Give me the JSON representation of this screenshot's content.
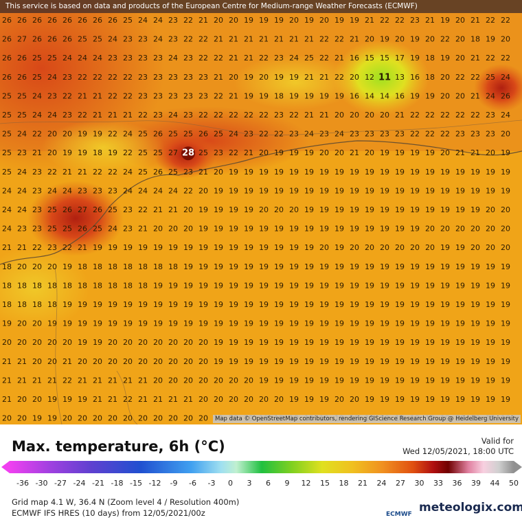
{
  "map": {
    "banner": "This service is based on data and products of the European Centre for Medium-range Weather Forecasts (ECMWF)",
    "attribution": "Map data © OpenStreetMap contributors, rendering GIScience Research Group @ Heidelberg University",
    "grid": [
      [
        26,
        26,
        26,
        26,
        26,
        26,
        26,
        26,
        25,
        24,
        24,
        23,
        22,
        21,
        20,
        20,
        19,
        19,
        19,
        20,
        19,
        20,
        19,
        19,
        21,
        22,
        22,
        23,
        21,
        19,
        20,
        21,
        22,
        22
      ],
      [
        26,
        27,
        26,
        26,
        26,
        25,
        25,
        24,
        23,
        23,
        24,
        23,
        22,
        22,
        21,
        21,
        21,
        21,
        21,
        21,
        21,
        22,
        22,
        21,
        20,
        19,
        20,
        19,
        20,
        22,
        20,
        18,
        19,
        20
      ],
      [
        26,
        26,
        25,
        25,
        24,
        24,
        24,
        23,
        23,
        23,
        23,
        24,
        23,
        22,
        22,
        21,
        21,
        22,
        23,
        24,
        25,
        22,
        21,
        16,
        15,
        15,
        17,
        19,
        18,
        19,
        20,
        21,
        22,
        22
      ],
      [
        26,
        26,
        25,
        24,
        23,
        22,
        22,
        22,
        22,
        23,
        23,
        23,
        23,
        23,
        21,
        20,
        19,
        20,
        19,
        19,
        21,
        21,
        22,
        20,
        12,
        11,
        13,
        16,
        18,
        20,
        22,
        22,
        25,
        24
      ],
      [
        25,
        25,
        24,
        23,
        22,
        21,
        21,
        22,
        22,
        23,
        23,
        23,
        23,
        23,
        22,
        21,
        19,
        19,
        18,
        19,
        19,
        19,
        19,
        16,
        14,
        14,
        16,
        19,
        19,
        20,
        20,
        21,
        24,
        26
      ],
      [
        25,
        25,
        24,
        24,
        23,
        22,
        21,
        21,
        21,
        22,
        23,
        24,
        23,
        22,
        22,
        22,
        22,
        22,
        23,
        22,
        21,
        21,
        20,
        20,
        20,
        20,
        21,
        22,
        22,
        22,
        22,
        22,
        23,
        24
      ],
      [
        25,
        24,
        22,
        20,
        20,
        19,
        19,
        22,
        24,
        25,
        26,
        25,
        25,
        26,
        25,
        24,
        23,
        22,
        22,
        23,
        24,
        23,
        24,
        23,
        23,
        23,
        23,
        22,
        22,
        22,
        23,
        23,
        23,
        20
      ],
      [
        25,
        23,
        21,
        20,
        19,
        19,
        18,
        19,
        22,
        25,
        25,
        27,
        28,
        25,
        23,
        22,
        21,
        20,
        19,
        19,
        19,
        20,
        20,
        21,
        20,
        19,
        19,
        19,
        19,
        20,
        21,
        21,
        20,
        19
      ],
      [
        25,
        24,
        23,
        22,
        21,
        21,
        22,
        22,
        24,
        25,
        26,
        25,
        23,
        21,
        20,
        19,
        19,
        19,
        19,
        19,
        19,
        19,
        19,
        19,
        19,
        19,
        19,
        19,
        19,
        19,
        19,
        19,
        19,
        19
      ],
      [
        24,
        24,
        23,
        24,
        24,
        23,
        23,
        23,
        24,
        24,
        24,
        24,
        22,
        20,
        19,
        19,
        19,
        19,
        19,
        19,
        19,
        19,
        19,
        19,
        19,
        19,
        19,
        19,
        19,
        19,
        19,
        19,
        19,
        19
      ],
      [
        24,
        24,
        23,
        25,
        26,
        27,
        26,
        25,
        23,
        22,
        21,
        21,
        20,
        19,
        19,
        19,
        19,
        20,
        20,
        20,
        19,
        19,
        19,
        19,
        19,
        19,
        19,
        19,
        19,
        19,
        19,
        19,
        20,
        20
      ],
      [
        24,
        23,
        23,
        25,
        25,
        26,
        25,
        24,
        23,
        21,
        20,
        20,
        20,
        19,
        19,
        19,
        19,
        19,
        19,
        19,
        19,
        19,
        19,
        19,
        19,
        19,
        19,
        19,
        20,
        20,
        20,
        20,
        20,
        20
      ],
      [
        21,
        21,
        22,
        23,
        22,
        21,
        19,
        19,
        19,
        19,
        19,
        19,
        19,
        19,
        19,
        19,
        19,
        19,
        19,
        19,
        19,
        20,
        19,
        20,
        20,
        20,
        20,
        20,
        20,
        19,
        19,
        20,
        20,
        20
      ],
      [
        18,
        20,
        20,
        20,
        19,
        18,
        18,
        18,
        18,
        18,
        18,
        18,
        19,
        19,
        19,
        19,
        19,
        19,
        19,
        19,
        19,
        19,
        19,
        19,
        19,
        19,
        19,
        19,
        19,
        19,
        19,
        19,
        19,
        19
      ],
      [
        18,
        18,
        18,
        18,
        18,
        18,
        18,
        18,
        18,
        18,
        19,
        19,
        19,
        19,
        19,
        19,
        19,
        19,
        19,
        19,
        19,
        19,
        19,
        19,
        19,
        19,
        19,
        19,
        19,
        19,
        19,
        19,
        19,
        19
      ],
      [
        18,
        18,
        18,
        18,
        19,
        19,
        19,
        19,
        19,
        19,
        19,
        19,
        19,
        19,
        19,
        19,
        19,
        19,
        19,
        19,
        19,
        19,
        19,
        19,
        19,
        19,
        19,
        19,
        19,
        19,
        19,
        19,
        19,
        19
      ],
      [
        19,
        20,
        20,
        19,
        19,
        19,
        19,
        19,
        19,
        19,
        19,
        19,
        19,
        19,
        19,
        19,
        19,
        19,
        19,
        19,
        19,
        19,
        19,
        19,
        19,
        19,
        19,
        19,
        19,
        19,
        19,
        19,
        19,
        19
      ],
      [
        20,
        20,
        20,
        20,
        20,
        19,
        19,
        20,
        20,
        20,
        20,
        20,
        20,
        20,
        19,
        19,
        19,
        19,
        19,
        19,
        19,
        19,
        19,
        19,
        19,
        19,
        19,
        19,
        19,
        19,
        19,
        19,
        19,
        19
      ],
      [
        21,
        21,
        20,
        20,
        21,
        20,
        20,
        20,
        20,
        20,
        20,
        20,
        20,
        20,
        19,
        19,
        19,
        19,
        19,
        19,
        19,
        19,
        19,
        19,
        19,
        19,
        19,
        19,
        19,
        19,
        19,
        19,
        19,
        19
      ],
      [
        21,
        21,
        21,
        21,
        22,
        21,
        21,
        21,
        21,
        21,
        20,
        20,
        20,
        20,
        20,
        20,
        20,
        19,
        19,
        19,
        19,
        19,
        19,
        19,
        19,
        19,
        19,
        19,
        19,
        19,
        19,
        19,
        19,
        19
      ],
      [
        21,
        20,
        20,
        19,
        19,
        19,
        21,
        21,
        22,
        21,
        21,
        21,
        21,
        20,
        20,
        20,
        20,
        20,
        20,
        19,
        19,
        19,
        20,
        20,
        19,
        19,
        19,
        19,
        19,
        19,
        19,
        19,
        19,
        19
      ],
      [
        20,
        20,
        19,
        19,
        20,
        20,
        20,
        20,
        20,
        20,
        20,
        20,
        20,
        20,
        19,
        19,
        19,
        19,
        19,
        19,
        19,
        19,
        19,
        19,
        19,
        19,
        19,
        19,
        19,
        19,
        19,
        19,
        19,
        19
      ]
    ]
  },
  "legend": {
    "title": "Max. temperature, 6h (°C)",
    "valid_label": "Valid for",
    "valid_time": "Wed 12/05/2021, 18:00 UTC",
    "scale": [
      -36,
      -30,
      -27,
      -24,
      -21,
      -18,
      -15,
      -12,
      -9,
      -6,
      -3,
      0,
      3,
      6,
      9,
      12,
      15,
      18,
      21,
      24,
      27,
      30,
      33,
      36,
      39,
      44,
      50
    ]
  },
  "footer": {
    "grid_info": "Grid map 4.1 W, 36.4 N (Zoom level 4 / Resolution 400m)",
    "model": "ECMWF IFS HRES (10 days) from 12/05/2021/00z",
    "ecmwf_logo": "ECMWF",
    "brand": "meteologix.com"
  }
}
